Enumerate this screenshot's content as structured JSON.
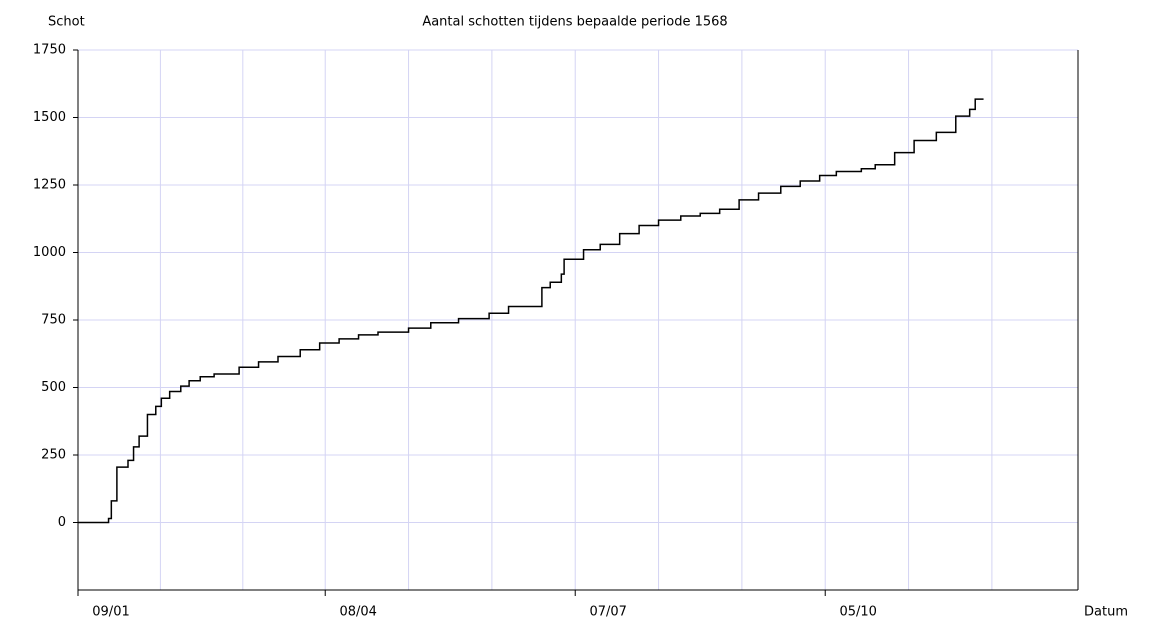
{
  "chart_data": {
    "type": "step",
    "title": "Aantal schotten tijdens bepaalde periode 1568",
    "y_label": "Schot",
    "x_label": "Datum",
    "x": [
      0,
      11,
      12,
      14,
      18,
      20,
      22,
      25,
      28,
      30,
      33,
      37,
      40,
      44,
      49,
      58,
      65,
      72,
      80,
      87,
      94,
      101,
      108,
      119,
      127,
      137,
      148,
      155,
      167,
      170,
      174,
      175,
      182,
      188,
      195,
      202,
      209,
      217,
      224,
      231,
      238,
      245,
      253,
      260,
      267,
      273,
      282,
      287,
      294,
      301,
      309,
      316,
      321,
      323,
      326
    ],
    "series": [
      {
        "name": "Schot",
        "color": "#000000",
        "values": [
          0,
          15,
          80,
          205,
          230,
          280,
          320,
          400,
          430,
          460,
          485,
          505,
          525,
          540,
          550,
          575,
          595,
          615,
          640,
          665,
          680,
          695,
          705,
          720,
          740,
          755,
          775,
          800,
          870,
          890,
          920,
          975,
          1010,
          1030,
          1070,
          1100,
          1120,
          1135,
          1145,
          1160,
          1195,
          1220,
          1245,
          1265,
          1285,
          1300,
          1310,
          1325,
          1370,
          1415,
          1445,
          1505,
          1530,
          1568,
          1568
        ]
      }
    ],
    "xlim": [
      0,
      360
    ],
    "xticks": [
      {
        "value": 0,
        "label": "09/01"
      },
      {
        "value": 89,
        "label": "08/04"
      },
      {
        "value": 179,
        "label": "07/07"
      },
      {
        "value": 269,
        "label": "05/10"
      }
    ],
    "ylim": [
      -250,
      1750
    ],
    "yticks": [
      0,
      250,
      500,
      750,
      1000,
      1250,
      1500,
      1750
    ],
    "grid": true,
    "grid_color": "#d4d4f4"
  }
}
